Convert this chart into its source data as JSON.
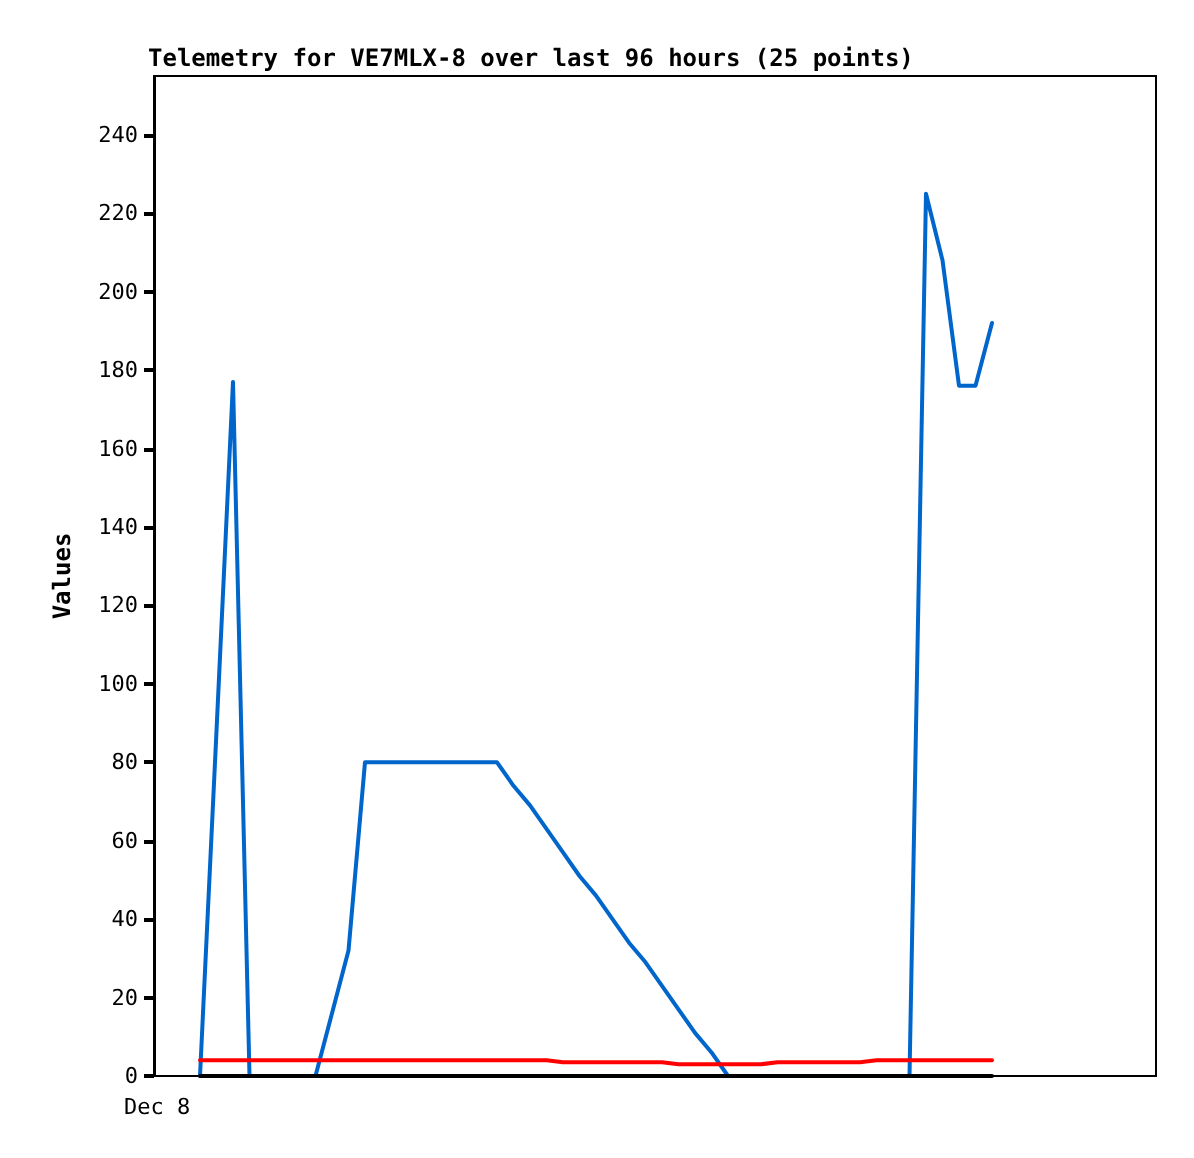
{
  "chart_data": {
    "type": "line",
    "title": "Telemetry for VE7MLX-8 over last 96 hours (25 points)",
    "ylabel": "Values",
    "annotations": [
      "Dec 8"
    ],
    "categories": [
      null,
      null,
      null,
      null,
      null,
      null,
      null,
      null,
      null,
      null,
      null,
      null,
      null,
      null,
      null,
      null,
      null,
      null,
      null,
      null,
      null,
      null,
      null,
      null,
      null,
      null,
      null,
      null,
      null,
      null,
      null,
      null,
      null,
      null,
      null,
      null,
      null,
      null,
      null,
      null,
      null,
      null,
      null,
      null,
      null,
      null,
      null,
      null,
      null
    ],
    "ylim": [
      0,
      255
    ],
    "yticks": [
      0,
      20,
      40,
      60,
      80,
      100,
      120,
      140,
      160,
      180,
      200,
      220,
      240
    ],
    "grid": false,
    "marker": "none",
    "line_style": "solid",
    "series": [
      {
        "color": "#0066cc",
        "values": [
          0,
          88,
          177,
          0,
          0,
          0,
          0,
          0,
          16,
          32,
          80,
          80,
          80,
          80,
          80,
          80,
          80,
          80,
          80,
          74,
          69,
          63,
          57,
          51,
          46,
          40,
          34,
          29,
          23,
          17,
          11,
          6,
          0,
          0,
          0,
          0,
          0,
          0,
          0,
          0,
          0,
          0,
          0,
          0,
          225,
          208,
          176,
          176,
          192
        ]
      },
      {
        "color": "#ff0000",
        "values": [
          4,
          4,
          4,
          4,
          4,
          4,
          4,
          4,
          4,
          4,
          4,
          4,
          4,
          4,
          4,
          4,
          4,
          4,
          4,
          4,
          4,
          4,
          3.5,
          3.5,
          3.5,
          3.5,
          3.5,
          3.5,
          3.5,
          3,
          3,
          3,
          3,
          3,
          3,
          3.5,
          3.5,
          3.5,
          3.5,
          3.5,
          3.5,
          4,
          4,
          4,
          4,
          4,
          4,
          4,
          4
        ]
      },
      {
        "color": "#000000",
        "values": [
          0,
          0,
          0,
          0,
          0,
          0,
          0,
          0,
          0,
          0,
          0,
          0,
          0,
          0,
          0,
          0,
          0,
          0,
          0,
          0,
          0,
          0,
          0,
          0,
          0,
          0,
          0,
          0,
          0,
          0,
          0,
          0,
          0,
          0,
          0,
          0,
          0,
          0,
          0,
          0,
          0,
          0,
          0,
          0,
          0,
          0,
          0,
          0,
          0
        ]
      }
    ]
  }
}
